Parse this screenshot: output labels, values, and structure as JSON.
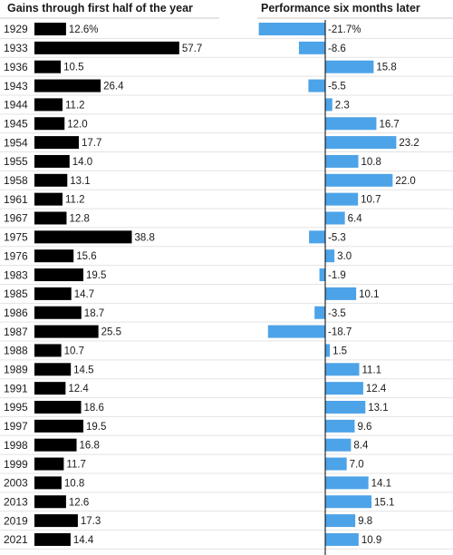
{
  "chart_data": [
    {
      "type": "bar",
      "orientation": "horizontal",
      "title": "Gains through first half of the year",
      "categories": [
        "1929",
        "1933",
        "1936",
        "1943",
        "1944",
        "1945",
        "1954",
        "1955",
        "1958",
        "1961",
        "1967",
        "1975",
        "1976",
        "1983",
        "1985",
        "1986",
        "1987",
        "1988",
        "1989",
        "1991",
        "1995",
        "1997",
        "1998",
        "1999",
        "2003",
        "2013",
        "2019",
        "2021"
      ],
      "values": [
        12.6,
        57.7,
        10.5,
        26.4,
        11.2,
        12.0,
        17.7,
        14.0,
        13.1,
        11.2,
        12.8,
        38.8,
        15.6,
        19.5,
        14.7,
        18.7,
        25.5,
        10.7,
        14.5,
        12.4,
        18.6,
        19.5,
        16.8,
        11.7,
        10.8,
        12.6,
        17.3,
        14.4
      ],
      "labels": [
        "12.6%",
        "57.7",
        "10.5",
        "26.4",
        "11.2",
        "12.0",
        "17.7",
        "14.0",
        "13.1",
        "11.2",
        "12.8",
        "38.8",
        "15.6",
        "19.5",
        "14.7",
        "18.7",
        "25.5",
        "10.7",
        "14.5",
        "12.4",
        "18.6",
        "19.5",
        "16.8",
        "11.7",
        "10.8",
        "12.6",
        "17.3",
        "14.4"
      ],
      "color": "#000000"
    },
    {
      "type": "bar",
      "orientation": "horizontal",
      "title": "Performance six months later",
      "categories": [
        "1929",
        "1933",
        "1936",
        "1943",
        "1944",
        "1945",
        "1954",
        "1955",
        "1958",
        "1961",
        "1967",
        "1975",
        "1976",
        "1983",
        "1985",
        "1986",
        "1987",
        "1988",
        "1989",
        "1991",
        "1995",
        "1997",
        "1998",
        "1999",
        "2003",
        "2013",
        "2019",
        "2021"
      ],
      "values": [
        -21.7,
        -8.6,
        15.8,
        -5.5,
        2.3,
        16.7,
        23.2,
        10.8,
        22.0,
        10.7,
        6.4,
        -5.3,
        3.0,
        -1.9,
        10.1,
        -3.5,
        -18.7,
        1.5,
        11.1,
        12.4,
        13.1,
        9.6,
        8.4,
        7.0,
        14.1,
        15.1,
        9.8,
        10.9
      ],
      "labels": [
        "-21.7%",
        "-8.6",
        "15.8",
        "-5.5",
        "2.3",
        "16.7",
        "23.2",
        "10.8",
        "22.0",
        "10.7",
        "6.4",
        "-5.3",
        "3.0",
        "-1.9",
        "10.1",
        "-3.5",
        "-18.7",
        "1.5",
        "11.1",
        "12.4",
        "13.1",
        "9.6",
        "8.4",
        "7.0",
        "14.1",
        "15.1",
        "9.8",
        "10.9"
      ],
      "color": "#4da3e8"
    }
  ]
}
